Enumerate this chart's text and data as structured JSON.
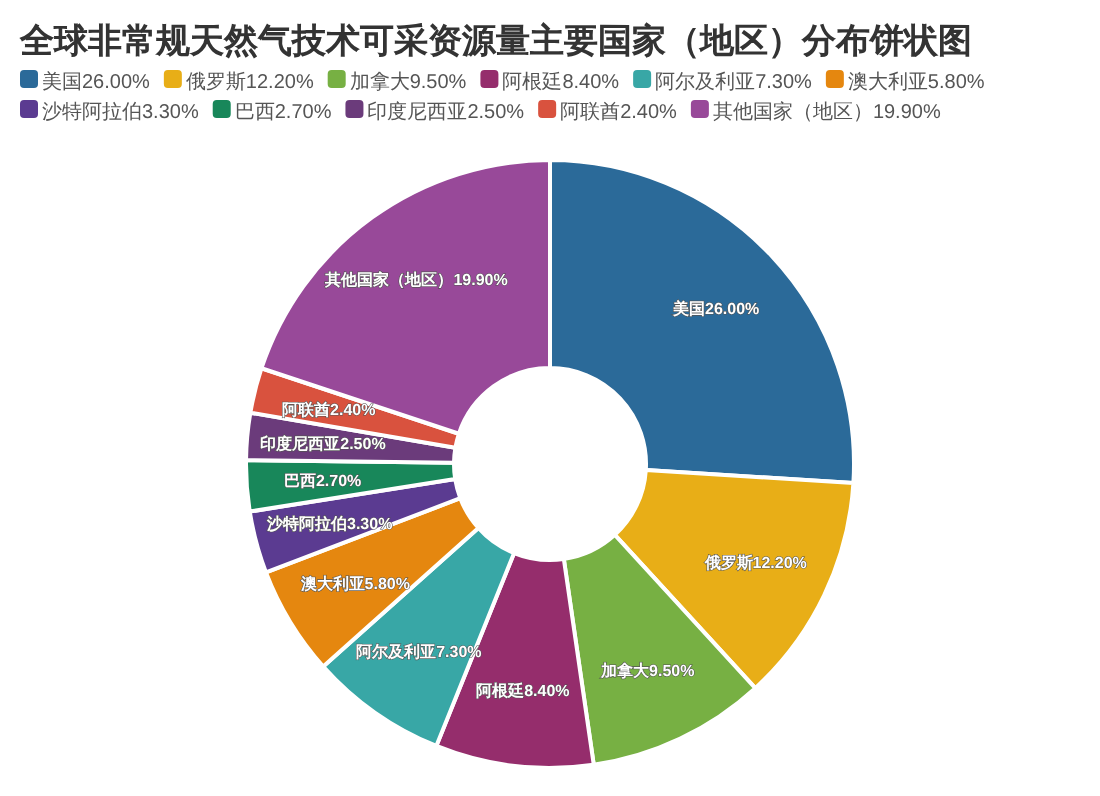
{
  "chart_data": {
    "type": "donut",
    "title": "全球非常规天然气技术可采资源量主要国家（地区）分布饼状图",
    "categories": [
      "美国",
      "俄罗斯",
      "加拿大",
      "阿根廷",
      "阿尔及利亚",
      "澳大利亚",
      "沙特阿拉伯",
      "巴西",
      "印度尼西亚",
      "阿联酋",
      "其他国家（地区）"
    ],
    "values": [
      26.0,
      12.2,
      9.5,
      8.4,
      7.3,
      5.8,
      3.3,
      2.7,
      2.5,
      2.4,
      19.9
    ],
    "value_labels": [
      "26.00%",
      "12.20%",
      "9.50%",
      "8.40%",
      "7.30%",
      "5.80%",
      "3.30%",
      "2.70%",
      "2.50%",
      "2.40%",
      "19.90%"
    ],
    "colors": [
      "#2b6a99",
      "#e8ae17",
      "#77b043",
      "#952d6c",
      "#38a7a6",
      "#e5870f",
      "#5b3b91",
      "#18875a",
      "#6b3b7b",
      "#d9523e",
      "#984999"
    ],
    "legend": "top left"
  }
}
